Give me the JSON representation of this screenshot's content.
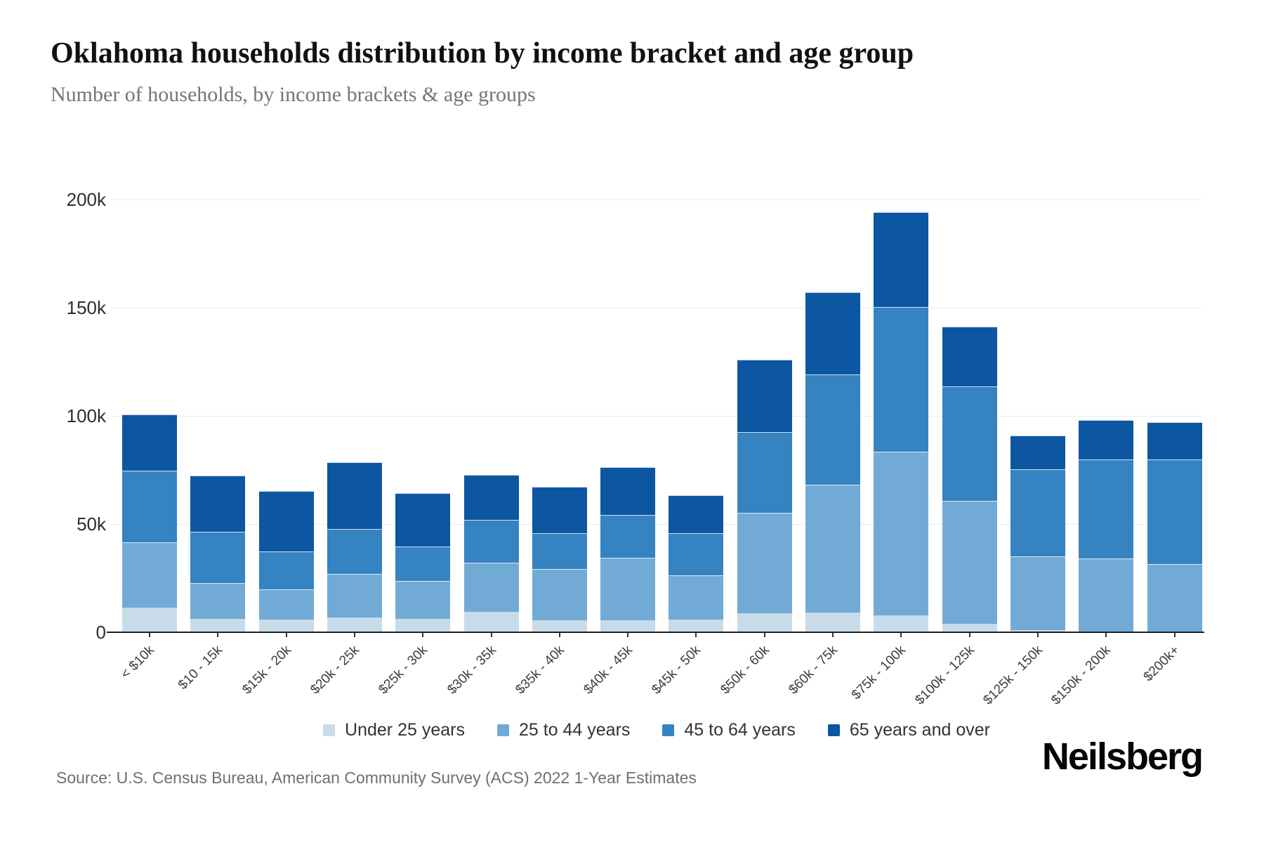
{
  "header": {
    "title": "Oklahoma households distribution by income bracket and age group",
    "subtitle": "Number of households, by income brackets & age groups"
  },
  "chart_data": {
    "type": "bar",
    "stacked": true,
    "title": "Oklahoma households distribution by income bracket and age group",
    "xlabel": "",
    "ylabel": "Number of households",
    "ylim": [
      0,
      200000
    ],
    "grid": "horizontal",
    "legend_position": "bottom",
    "yticks": [
      {
        "value": 0,
        "label": "0"
      },
      {
        "value": 50000,
        "label": "50k"
      },
      {
        "value": 100000,
        "label": "100k"
      },
      {
        "value": 150000,
        "label": "150k"
      },
      {
        "value": 200000,
        "label": "200k"
      }
    ],
    "categories": [
      "< $10k",
      "$10 - 15k",
      "$15k - 20k",
      "$20k - 25k",
      "$25k - 30k",
      "$30k - 35k",
      "$35k - 40k",
      "$40k - 45k",
      "$45k - 50k",
      "$50k - 60k",
      "$60k - 75k",
      "$75k - 100k",
      "$100k - 125k",
      "$125k - 150k",
      "$150k - 200k",
      "$200k+"
    ],
    "series": [
      {
        "name": "Under 25 years",
        "color": "#c8dbe9",
        "values": [
          11400,
          6200,
          5800,
          6800,
          6200,
          9400,
          5500,
          5500,
          5800,
          8800,
          9100,
          7800,
          3900,
          1000,
          400,
          300
        ]
      },
      {
        "name": "25 to 44 years",
        "color": "#72aad6",
        "values": [
          30200,
          16500,
          14000,
          20100,
          17500,
          22700,
          23700,
          28900,
          20500,
          46400,
          59100,
          75600,
          56800,
          34100,
          33700,
          31200
        ]
      },
      {
        "name": "45 to 64 years",
        "color": "#3583c1",
        "values": [
          33100,
          23700,
          17500,
          20800,
          15900,
          19800,
          16600,
          19800,
          19500,
          37300,
          51000,
          67000,
          52900,
          40200,
          45800,
          48400
        ]
      },
      {
        "name": "65 years and over",
        "color": "#0d56a2",
        "values": [
          25900,
          26000,
          28000,
          30900,
          24700,
          20800,
          21400,
          22100,
          17500,
          33500,
          37900,
          43800,
          27600,
          15600,
          18200,
          17200
        ]
      }
    ]
  },
  "footer": {
    "source": "Source: U.S. Census Bureau, American Community Survey (ACS) 2022 1-Year Estimates",
    "logo": "Neilsberg"
  }
}
